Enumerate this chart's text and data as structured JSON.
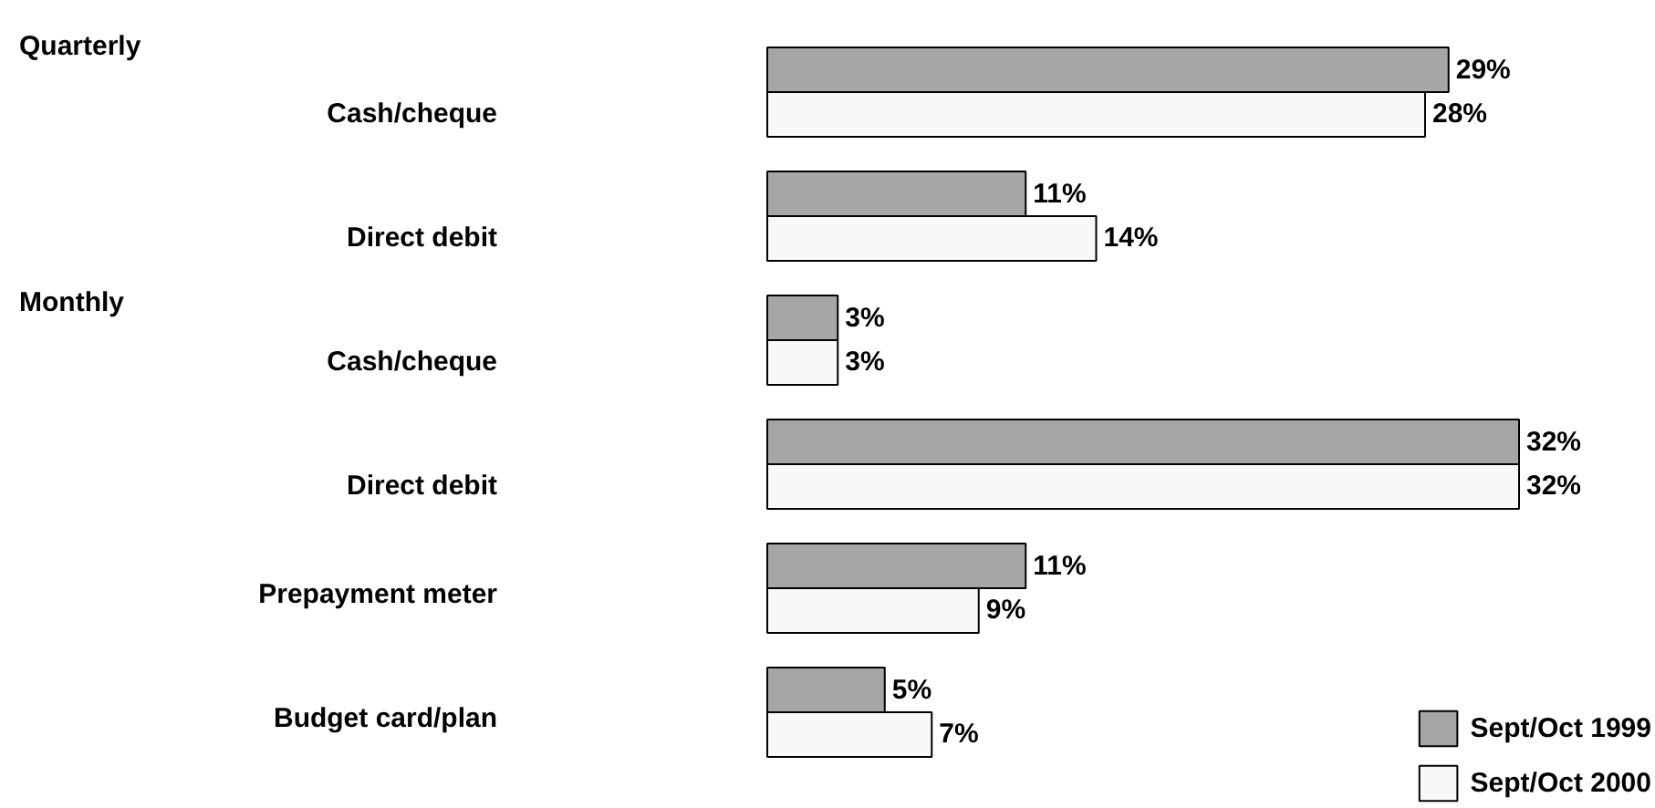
{
  "chart_data": {
    "type": "bar",
    "orientation": "horizontal",
    "categories": [
      "Cash/cheque",
      "Direct debit",
      "Cash/cheque",
      "Direct debit",
      "Prepayment meter",
      "Budget card/plan"
    ],
    "series": [
      {
        "name": "Sept/Oct 1999",
        "color": "#a6a6a6",
        "values": [
          29,
          11,
          3,
          32,
          11,
          5
        ],
        "value_labels": [
          "29%",
          "11%",
          "3%",
          "32%",
          "11%",
          "5%"
        ]
      },
      {
        "name": "Sept/Oct 2000",
        "color": "#f8f8f8",
        "values": [
          28,
          14,
          3,
          32,
          9,
          7
        ],
        "value_labels": [
          "28%",
          "14%",
          "3%",
          "32%",
          "9%",
          "7%"
        ]
      }
    ],
    "annotations": [
      "Quarterly",
      "Monthly"
    ],
    "legend": "bottom right",
    "grid": false,
    "tick_labels": false
  }
}
